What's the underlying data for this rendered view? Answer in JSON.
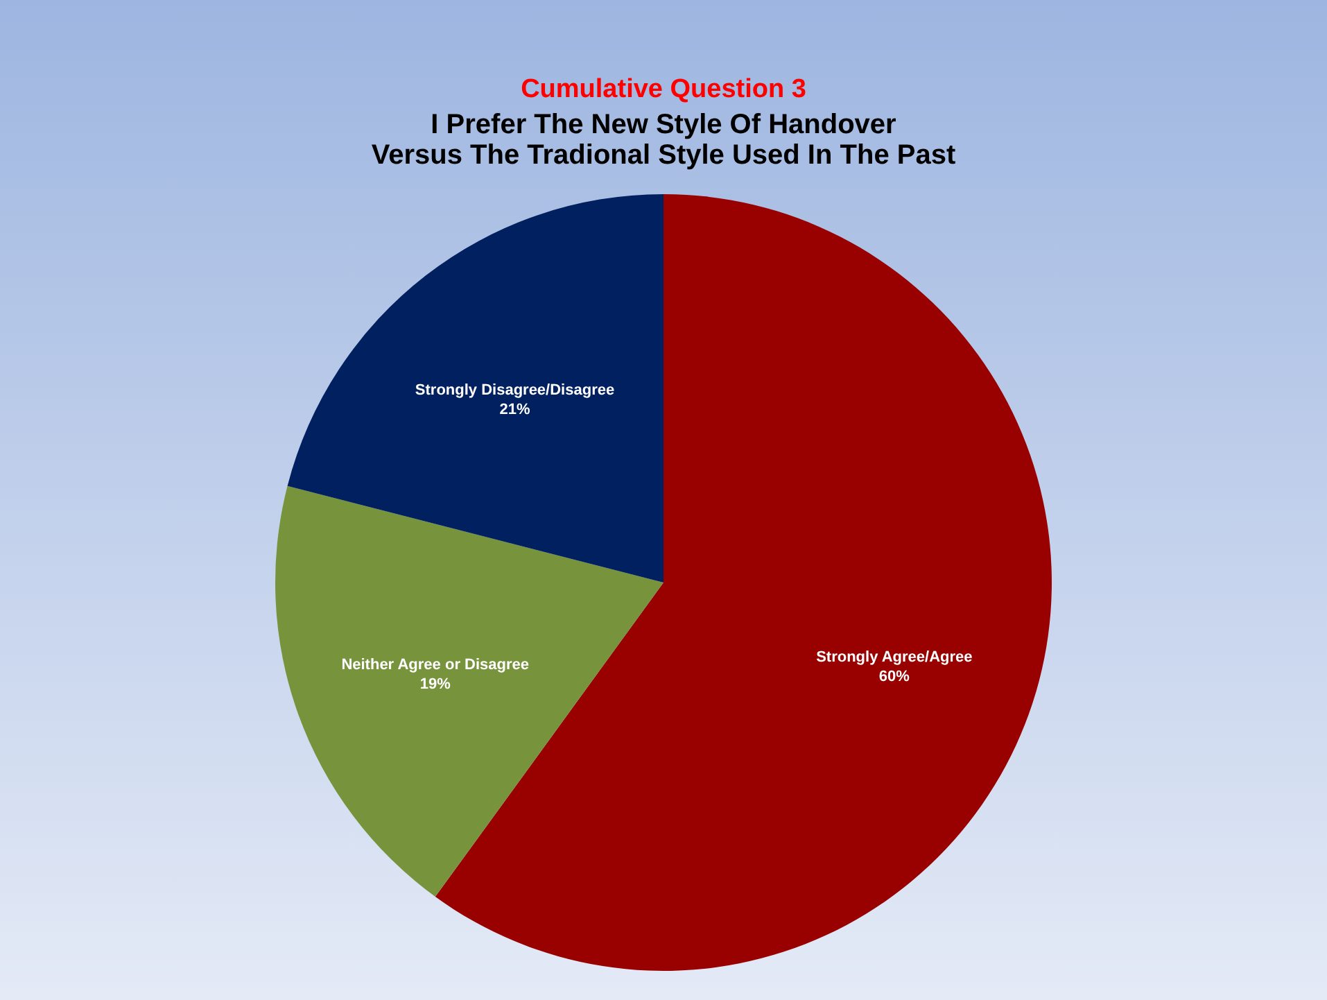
{
  "chart_data": {
    "type": "pie",
    "title": "Cumulative Question 3",
    "subtitle": "I Prefer The New Style Of Handover\nVersus The Tradional Style Used In The Past",
    "categories": [
      "Strongly Agree/Agree",
      "Neither Agree or Disagree",
      "Strongly Disagree/Disagree"
    ],
    "values": [
      60,
      19,
      21
    ],
    "colors": [
      "#990000",
      "#77933c",
      "#002060"
    ],
    "value_labels": [
      "60%",
      "19%",
      "21%"
    ]
  }
}
